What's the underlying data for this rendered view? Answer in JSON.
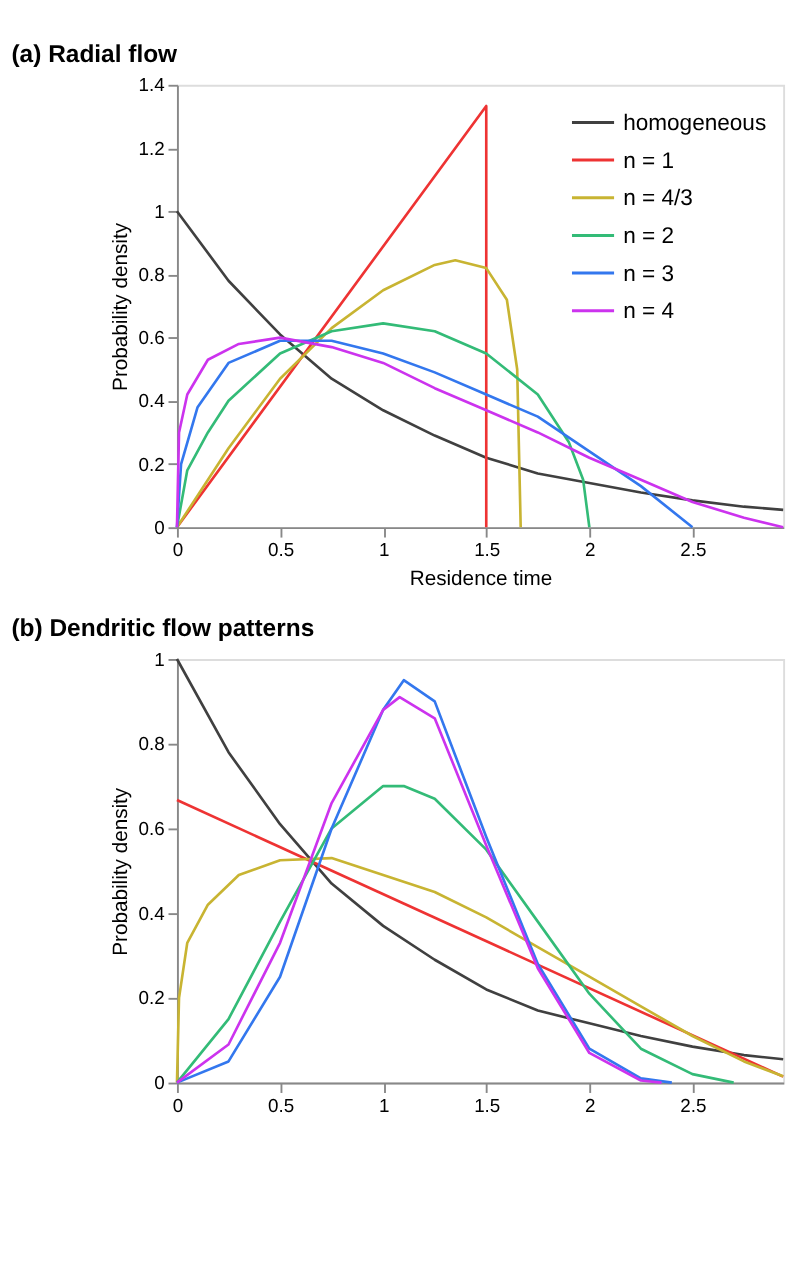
{
  "chart_data": [
    {
      "type": "line",
      "title": "(a) Radial flow",
      "xlabel": "Residence time",
      "ylabel": "Probability density",
      "xlim": [
        0,
        2.94
      ],
      "ylim": [
        0,
        1.4
      ],
      "xticks": [
        0,
        0.5,
        1,
        1.5,
        2,
        2.5
      ],
      "yticks": [
        0,
        0.2,
        0.4,
        0.6,
        0.8,
        1,
        1.2,
        1.4
      ],
      "legend": "top right",
      "line_style": "solid",
      "marker": "none",
      "series": [
        {
          "name": "homogeneous",
          "color": "#404040",
          "x": [
            0,
            0.25,
            0.5,
            0.75,
            1,
            1.25,
            1.5,
            1.75,
            2,
            2.25,
            2.5,
            2.75,
            2.94
          ],
          "values": [
            1,
            0.78,
            0.61,
            0.47,
            0.37,
            0.29,
            0.22,
            0.17,
            0.14,
            0.11,
            0.085,
            0.065,
            0.055
          ]
        },
        {
          "name": "n = 1",
          "color": "#ee3333",
          "x": [
            0,
            1.5,
            1.5
          ],
          "values": [
            0,
            1.333,
            0
          ]
        },
        {
          "name": "n = 4/3",
          "color": "#c8b432",
          "x": [
            0,
            0.25,
            0.5,
            0.75,
            1,
            1.25,
            1.35,
            1.5,
            1.6,
            1.65,
            1.667
          ],
          "values": [
            0,
            0.25,
            0.47,
            0.63,
            0.75,
            0.83,
            0.845,
            0.82,
            0.72,
            0.5,
            0
          ]
        },
        {
          "name": "n = 2",
          "color": "#33bb77",
          "x": [
            0,
            0.05,
            0.15,
            0.25,
            0.5,
            0.75,
            1,
            1.25,
            1.5,
            1.75,
            1.9,
            1.97,
            2
          ],
          "values": [
            0,
            0.18,
            0.3,
            0.4,
            0.55,
            0.62,
            0.645,
            0.62,
            0.55,
            0.42,
            0.27,
            0.15,
            0
          ]
        },
        {
          "name": "n = 3",
          "color": "#3377ee",
          "x": [
            0,
            0.02,
            0.1,
            0.25,
            0.5,
            0.75,
            1,
            1.25,
            1.5,
            1.75,
            2,
            2.25,
            2.5
          ],
          "values": [
            0,
            0.2,
            0.38,
            0.52,
            0.59,
            0.59,
            0.55,
            0.49,
            0.42,
            0.35,
            0.24,
            0.13,
            0
          ]
        },
        {
          "name": "n = 4",
          "color": "#cc33ee",
          "x": [
            0,
            0.01,
            0.05,
            0.15,
            0.3,
            0.5,
            0.75,
            1,
            1.25,
            1.5,
            1.75,
            2,
            2.25,
            2.5,
            2.75,
            2.94
          ],
          "values": [
            0,
            0.3,
            0.42,
            0.53,
            0.58,
            0.6,
            0.57,
            0.52,
            0.44,
            0.37,
            0.3,
            0.22,
            0.15,
            0.08,
            0.03,
            0
          ]
        }
      ]
    },
    {
      "type": "line",
      "title": "(b) Dendritic flow patterns",
      "ylabel": "Probability density",
      "xlim": [
        0,
        2.94
      ],
      "ylim": [
        0,
        1
      ],
      "xticks": [
        0,
        0.5,
        1,
        1.5,
        2,
        2.5
      ],
      "yticks": [
        0,
        0.2,
        0.4,
        0.6,
        0.8,
        1
      ],
      "legend": "top right",
      "line_style": "solid",
      "marker": "none",
      "series": [
        {
          "name": "homogeneous",
          "color": "#404040",
          "x": [
            0,
            0.25,
            0.5,
            0.75,
            1,
            1.25,
            1.5,
            1.75,
            2,
            2.25,
            2.5,
            2.75,
            2.94
          ],
          "values": [
            1,
            0.78,
            0.61,
            0.47,
            0.37,
            0.29,
            0.22,
            0.17,
            0.14,
            0.11,
            0.085,
            0.065,
            0.055
          ]
        },
        {
          "name": "n = 1",
          "color": "#ee3333",
          "x": [
            0,
            2.94
          ],
          "values": [
            0.667,
            0.014
          ]
        },
        {
          "name": "n = 4/3",
          "color": "#c8b432",
          "x": [
            0,
            0.01,
            0.05,
            0.15,
            0.3,
            0.5,
            0.75,
            1,
            1.25,
            1.5,
            1.75,
            2,
            2.25,
            2.5,
            2.75,
            2.94
          ],
          "values": [
            0,
            0.2,
            0.33,
            0.42,
            0.49,
            0.525,
            0.53,
            0.49,
            0.45,
            0.39,
            0.32,
            0.25,
            0.18,
            0.11,
            0.05,
            0.015
          ]
        },
        {
          "name": "n = 2",
          "color": "#33bb77",
          "x": [
            0,
            0.25,
            0.5,
            0.75,
            1,
            1.1,
            1.25,
            1.5,
            1.75,
            2,
            2.25,
            2.5,
            2.7
          ],
          "values": [
            0,
            0.15,
            0.38,
            0.6,
            0.7,
            0.7,
            0.67,
            0.55,
            0.38,
            0.21,
            0.08,
            0.02,
            0
          ]
        },
        {
          "name": "n = 3",
          "color": "#3377ee",
          "x": [
            0,
            0.25,
            0.5,
            0.75,
            1,
            1.1,
            1.25,
            1.5,
            1.75,
            2,
            2.25,
            2.4
          ],
          "values": [
            0,
            0.05,
            0.25,
            0.6,
            0.88,
            0.95,
            0.9,
            0.58,
            0.28,
            0.08,
            0.01,
            0
          ]
        },
        {
          "name": "n = 4",
          "color": "#cc33ee",
          "x": [
            0,
            0.25,
            0.5,
            0.75,
            1,
            1.08,
            1.25,
            1.5,
            1.75,
            2,
            2.25,
            2.35
          ],
          "values": [
            0,
            0.09,
            0.33,
            0.66,
            0.88,
            0.91,
            0.86,
            0.56,
            0.27,
            0.07,
            0.005,
            0
          ]
        }
      ]
    }
  ]
}
